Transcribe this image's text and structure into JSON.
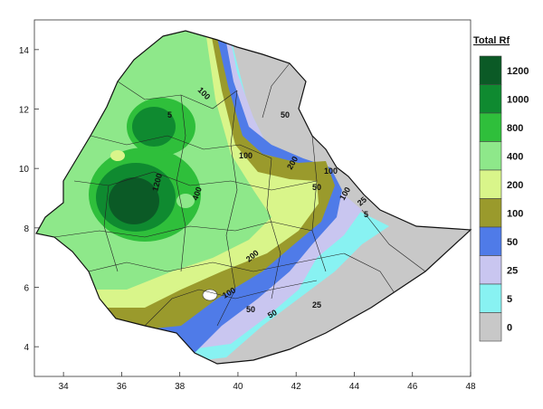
{
  "map": {
    "x_ticks": [
      "34",
      "36",
      "38",
      "40",
      "42",
      "44",
      "46",
      "48"
    ],
    "y_ticks": [
      "4",
      "6",
      "8",
      "10",
      "12",
      "14"
    ],
    "x_range": [
      33,
      48
    ],
    "y_range": [
      3,
      15
    ],
    "contour_labels": [
      "1200",
      "100",
      "400",
      "100",
      "50",
      "200",
      "100",
      "50",
      "25",
      "5",
      "100",
      "100",
      "50",
      "200",
      "50",
      "25",
      "5"
    ]
  },
  "legend": {
    "title": "Total Rf",
    "items": [
      {
        "label": "1200",
        "color": "#0b5a26"
      },
      {
        "label": "1000",
        "color": "#0f8a30"
      },
      {
        "label": "800",
        "color": "#2fbf3b"
      },
      {
        "label": "400",
        "color": "#8ee88a"
      },
      {
        "label": "200",
        "color": "#d9f58a"
      },
      {
        "label": "100",
        "color": "#9a9a2c"
      },
      {
        "label": "50",
        "color": "#4f7be8"
      },
      {
        "label": "25",
        "color": "#c9c6f0"
      },
      {
        "label": "5",
        "color": "#88f2f2"
      },
      {
        "label": "0",
        "color": "#c8c8c8"
      }
    ]
  }
}
